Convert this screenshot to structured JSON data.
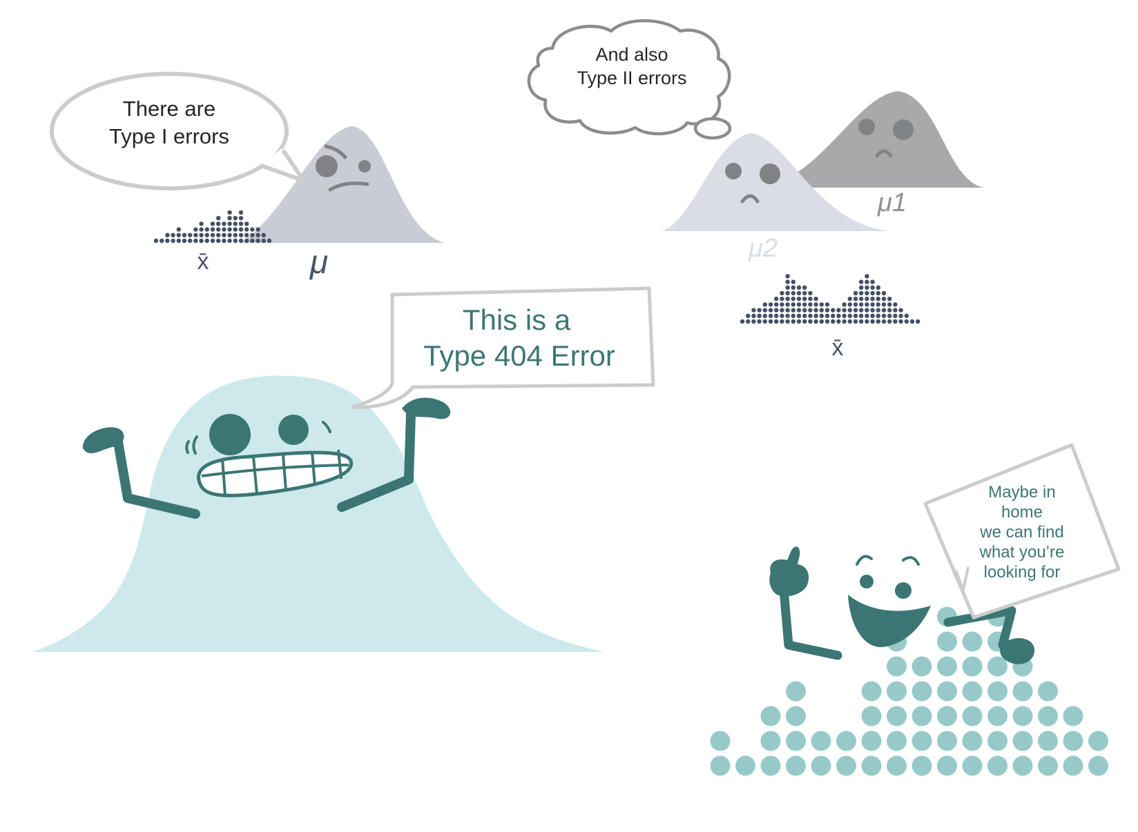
{
  "type1_bubble": {
    "line1": "There are",
    "line2": "Type I errors"
  },
  "type1_xbar": "x̄",
  "type1_mu": "μ",
  "type2_bubble": {
    "line1": "And also",
    "line2": "Type II errors"
  },
  "type2_mu1": "μ1",
  "type2_mu2": "μ2",
  "type2_xbar": "x̄",
  "main_bubble": {
    "line1": "This is a",
    "line2": "Type 404 Error"
  },
  "home_sign": {
    "line1": "Maybe in",
    "line2": "home",
    "line3": "we can find",
    "line4": "what you’re",
    "line5": "looking for"
  },
  "colors": {
    "teal_dark": "#3b7674",
    "teal_light": "#cde9ec",
    "dot_teal": "#98c9c9",
    "grey_curve": "#c9ccd4",
    "grey_dark": "#a9a9ab",
    "grey_light": "#dadde5",
    "dot_navy": "#454f63"
  }
}
